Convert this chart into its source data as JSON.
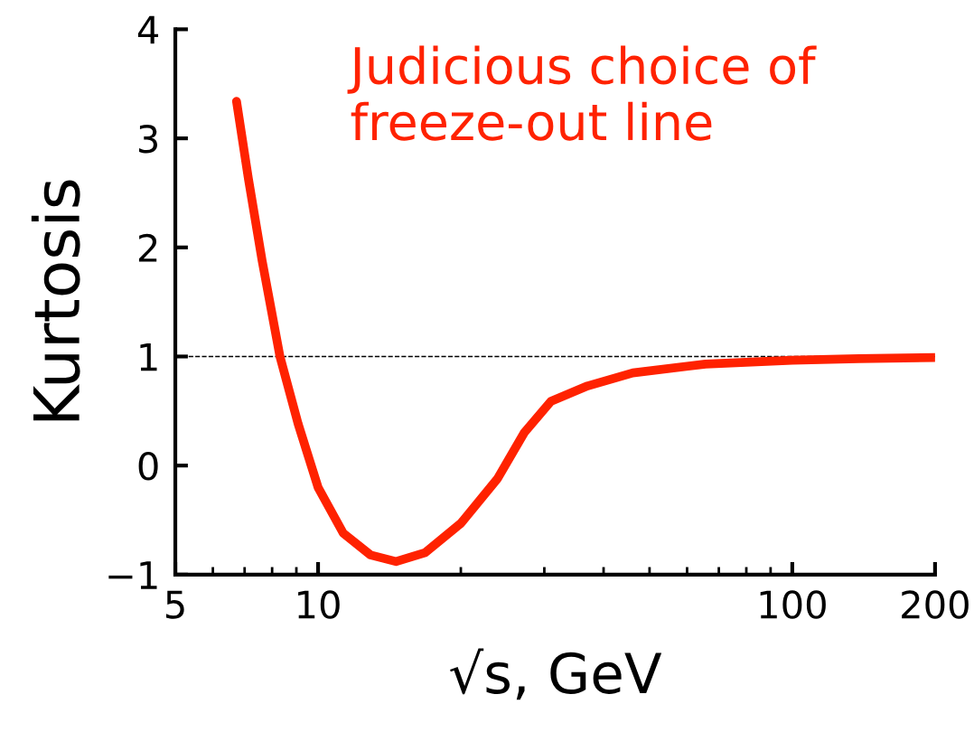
{
  "chart_data": {
    "type": "line",
    "xlabel": "√s, GeV",
    "ylabel": "Kurtosis",
    "annotations": [
      "Judicious choice of\nfreeze-out line"
    ],
    "log": "x",
    "grid": false,
    "marker": "none",
    "line_style": "solid",
    "xlim": [
      5,
      200
    ],
    "xticks": [
      5,
      10,
      100,
      200
    ],
    "ylim": [
      -1,
      4
    ],
    "yticks": [
      -1,
      0,
      1,
      2,
      3,
      4
    ],
    "ref_lines": [
      {
        "axis": "y",
        "value": 1,
        "color": "#000000",
        "line_style": "dashed"
      }
    ],
    "series": [
      {
        "color": "#ff2200",
        "x": [
          6.73,
          7.13,
          7.62,
          8.31,
          9.08,
          10,
          11.3,
          12.9,
          14.6,
          16.8,
          20.0,
          23.9,
          27.2,
          31.0,
          37.0,
          46.1,
          65.6,
          100,
          138,
          200
        ],
        "values": [
          3.34,
          2.63,
          1.88,
          1.0,
          0.38,
          -0.2,
          -0.62,
          -0.82,
          -0.88,
          -0.8,
          -0.53,
          -0.12,
          0.3,
          0.59,
          0.73,
          0.85,
          0.93,
          0.965,
          0.98,
          0.99
        ]
      }
    ]
  }
}
